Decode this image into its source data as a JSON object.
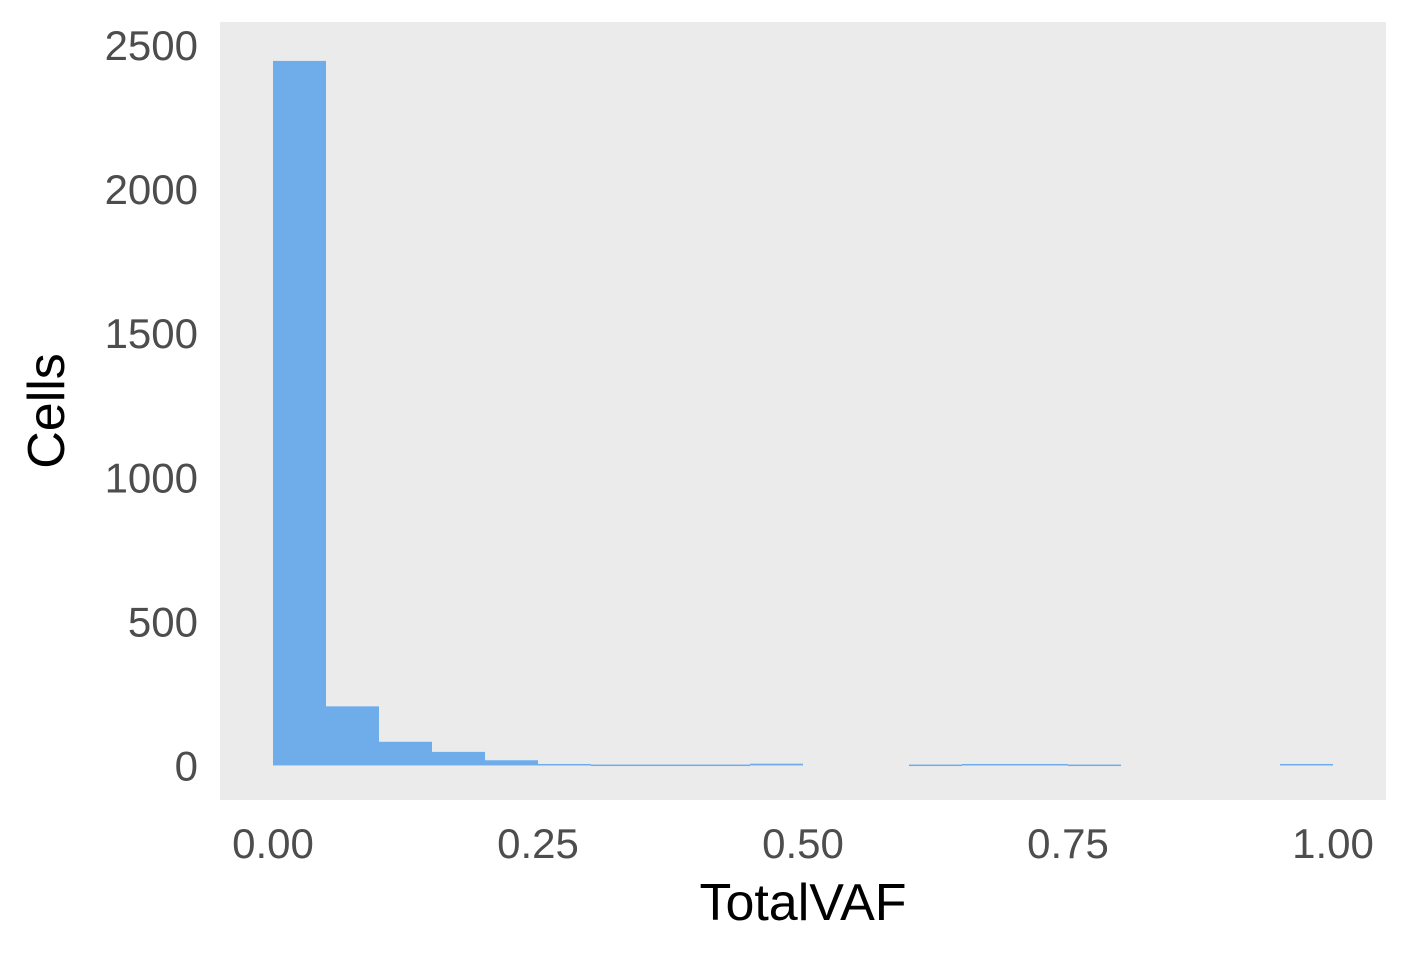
{
  "chart_data": {
    "type": "bar",
    "title": "",
    "xlabel": "TotalVAF",
    "ylabel": "Cells",
    "xlim": [
      -0.05,
      1.05
    ],
    "ylim": [
      -120,
      2580
    ],
    "x_ticks": [
      "0.00",
      "0.25",
      "0.50",
      "0.75",
      "1.00"
    ],
    "x_tick_values": [
      0,
      0.25,
      0.5,
      0.75,
      1.0
    ],
    "y_ticks": [
      "0",
      "500",
      "1000",
      "1500",
      "2000",
      "2500"
    ],
    "y_tick_values": [
      0,
      500,
      1000,
      1500,
      2000,
      2500
    ],
    "grid": false,
    "bin_width": 0.05,
    "bins": [
      {
        "x0": 0.0,
        "x1": 0.05,
        "count": 2445
      },
      {
        "x0": 0.05,
        "x1": 0.1,
        "count": 205
      },
      {
        "x0": 0.1,
        "x1": 0.15,
        "count": 82
      },
      {
        "x0": 0.15,
        "x1": 0.2,
        "count": 47
      },
      {
        "x0": 0.2,
        "x1": 0.25,
        "count": 18
      },
      {
        "x0": 0.25,
        "x1": 0.3,
        "count": 5
      },
      {
        "x0": 0.3,
        "x1": 0.35,
        "count": 3
      },
      {
        "x0": 0.35,
        "x1": 0.4,
        "count": 3
      },
      {
        "x0": 0.4,
        "x1": 0.45,
        "count": 3
      },
      {
        "x0": 0.45,
        "x1": 0.5,
        "count": 6
      },
      {
        "x0": 0.5,
        "x1": 0.55,
        "count": 0
      },
      {
        "x0": 0.55,
        "x1": 0.6,
        "count": 0
      },
      {
        "x0": 0.6,
        "x1": 0.65,
        "count": 3
      },
      {
        "x0": 0.65,
        "x1": 0.7,
        "count": 5
      },
      {
        "x0": 0.7,
        "x1": 0.75,
        "count": 5
      },
      {
        "x0": 0.75,
        "x1": 0.8,
        "count": 3
      },
      {
        "x0": 0.8,
        "x1": 0.85,
        "count": 0
      },
      {
        "x0": 0.85,
        "x1": 0.9,
        "count": 0
      },
      {
        "x0": 0.9,
        "x1": 0.95,
        "count": 0
      },
      {
        "x0": 0.95,
        "x1": 1.0,
        "count": 5
      }
    ],
    "colors": {
      "bar": "#6fadea",
      "panel": "#ebebeb",
      "tick_text": "#4d4d4d",
      "title_text": "#000000"
    }
  }
}
